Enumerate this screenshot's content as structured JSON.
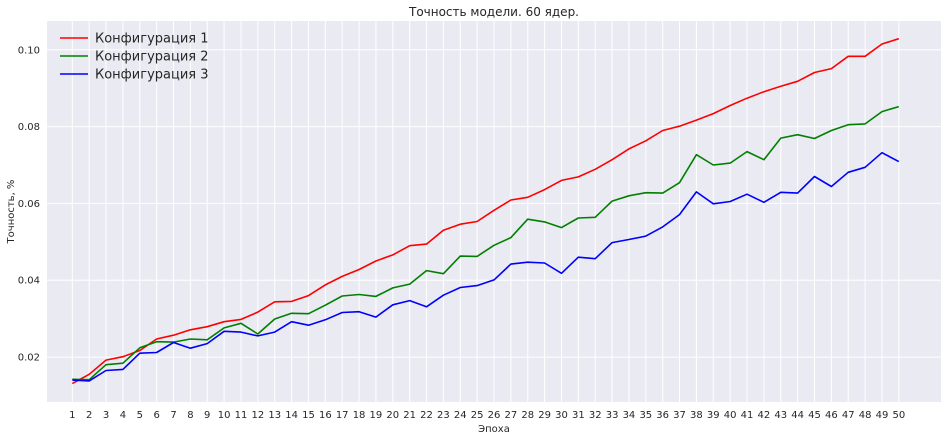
{
  "chart_data": {
    "type": "line",
    "title": "Точность модели. 60 ядер.",
    "xlabel": "Эпоха",
    "ylabel": "Точность, %",
    "x": [
      1,
      2,
      3,
      4,
      5,
      6,
      7,
      8,
      9,
      10,
      11,
      12,
      13,
      14,
      15,
      16,
      17,
      18,
      19,
      20,
      21,
      22,
      23,
      24,
      25,
      26,
      27,
      28,
      29,
      30,
      31,
      32,
      33,
      34,
      35,
      36,
      37,
      38,
      39,
      40,
      41,
      42,
      43,
      44,
      45,
      46,
      47,
      48,
      49,
      50
    ],
    "xlim": [
      -0.5,
      52.5
    ],
    "ylim": [
      0.0083,
      0.1075
    ],
    "yticks": [
      0.02,
      0.04,
      0.06,
      0.08,
      0.1
    ],
    "ytick_labels": [
      "0.02",
      "0.04",
      "0.06",
      "0.08",
      "0.10"
    ],
    "grid": true,
    "legend_position": "top-left",
    "series": [
      {
        "name": "Конфигурация 1",
        "color": "#ff0000",
        "values": [
          0.0131,
          0.0155,
          0.0192,
          0.0201,
          0.0217,
          0.0247,
          0.0257,
          0.0271,
          0.0279,
          0.0292,
          0.0298,
          0.0317,
          0.0344,
          0.0345,
          0.036,
          0.0388,
          0.041,
          0.0428,
          0.045,
          0.0466,
          0.049,
          0.0494,
          0.053,
          0.0546,
          0.0553,
          0.0582,
          0.0609,
          0.0616,
          0.0636,
          0.066,
          0.0669,
          0.0689,
          0.0714,
          0.0742,
          0.0763,
          0.079,
          0.0801,
          0.0817,
          0.0834,
          0.0855,
          0.0874,
          0.0891,
          0.0905,
          0.0918,
          0.0941,
          0.0951,
          0.0983,
          0.0983,
          0.1015,
          0.1029
        ]
      },
      {
        "name": "Конфигурация 2",
        "color": "#008000",
        "values": [
          0.0142,
          0.0141,
          0.018,
          0.0184,
          0.0224,
          0.024,
          0.0239,
          0.0247,
          0.0245,
          0.0276,
          0.0288,
          0.026,
          0.0299,
          0.0314,
          0.0313,
          0.0335,
          0.0359,
          0.0363,
          0.0358,
          0.038,
          0.039,
          0.0425,
          0.0417,
          0.0463,
          0.0462,
          0.0491,
          0.0511,
          0.0559,
          0.0552,
          0.0537,
          0.0562,
          0.0564,
          0.0606,
          0.062,
          0.0628,
          0.0627,
          0.0654,
          0.0727,
          0.07,
          0.0705,
          0.0735,
          0.0714,
          0.077,
          0.0779,
          0.0769,
          0.079,
          0.0805,
          0.0807,
          0.0839,
          0.0852
        ]
      },
      {
        "name": "Конфигурация 3",
        "color": "#0000ff",
        "values": [
          0.014,
          0.0138,
          0.0165,
          0.0168,
          0.021,
          0.0212,
          0.0238,
          0.0223,
          0.0235,
          0.0267,
          0.0265,
          0.0255,
          0.0265,
          0.0292,
          0.0283,
          0.0297,
          0.0316,
          0.0318,
          0.0304,
          0.0336,
          0.0347,
          0.0331,
          0.0361,
          0.0381,
          0.0386,
          0.0401,
          0.0442,
          0.0447,
          0.0445,
          0.0418,
          0.046,
          0.0456,
          0.0498,
          0.0506,
          0.0515,
          0.0539,
          0.0571,
          0.063,
          0.0599,
          0.0605,
          0.0624,
          0.0603,
          0.0629,
          0.0627,
          0.067,
          0.0644,
          0.0681,
          0.0694,
          0.0732,
          0.0709
        ]
      }
    ]
  }
}
